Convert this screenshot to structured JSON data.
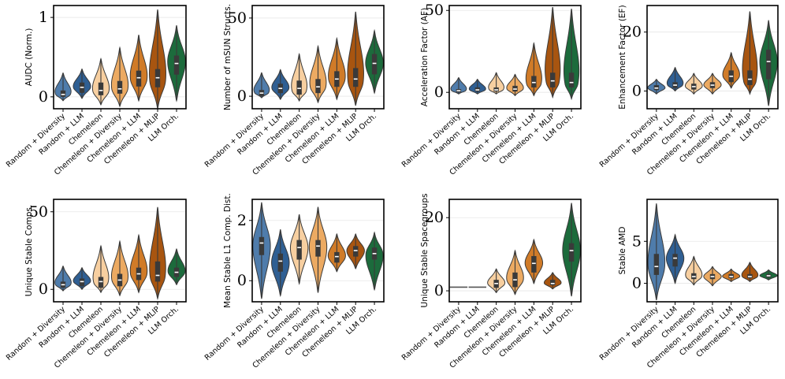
{
  "chart_data": [
    {
      "type": "violin",
      "ylabel": "AUDC (Norm.)",
      "ylim": [
        -0.15,
        1.15
      ],
      "yticks": [
        0,
        1
      ],
      "grid": true,
      "categories": [
        "Random + Diversity",
        "Random + LLM",
        "Chemeleon",
        "Chemeleon + Diversity",
        "Chemeleon + LLM",
        "Chemeleon + MLIP",
        "LLM Orch."
      ],
      "colors": [
        "#4f7cab",
        "#2f5f93",
        "#f7cfa0",
        "#ecaa62",
        "#d07b28",
        "#a85510",
        "#1c6b3c"
      ],
      "violins": [
        {
          "min": -0.05,
          "q1": 0.0,
          "median": 0.03,
          "q3": 0.08,
          "max": 0.3,
          "mode": 0.03
        },
        {
          "min": -0.02,
          "q1": 0.05,
          "median": 0.12,
          "q3": 0.18,
          "max": 0.35,
          "mode": 0.12
        },
        {
          "min": -0.1,
          "q1": 0.02,
          "median": 0.08,
          "q3": 0.18,
          "max": 0.48,
          "mode": 0.07
        },
        {
          "min": -0.12,
          "q1": 0.04,
          "median": 0.1,
          "q3": 0.2,
          "max": 0.62,
          "mode": 0.1
        },
        {
          "min": -0.05,
          "q1": 0.13,
          "median": 0.24,
          "q3": 0.33,
          "max": 0.78,
          "mode": 0.22
        },
        {
          "min": -0.15,
          "q1": 0.12,
          "median": 0.24,
          "q3": 0.35,
          "max": 1.1,
          "mode": 0.2
        },
        {
          "min": -0.05,
          "q1": 0.28,
          "median": 0.42,
          "q3": 0.52,
          "max": 0.9,
          "mode": 0.45
        }
      ]
    },
    {
      "type": "violin",
      "ylabel": "Number of mSUN Structs.",
      "ylim": [
        -8,
        58
      ],
      "yticks": [
        0,
        50
      ],
      "grid": true,
      "categories": [
        "Random + Diversity",
        "Random + LLM",
        "Chemeleon",
        "Chemeleon + Diversity",
        "Chemeleon + LLM",
        "Chemeleon + MLIP",
        "LLM Orch."
      ],
      "colors": [
        "#4f7cab",
        "#2f5f93",
        "#f7cfa0",
        "#ecaa62",
        "#d07b28",
        "#a85510",
        "#1c6b3c"
      ],
      "violins": [
        {
          "min": -1,
          "q1": 0,
          "median": 2,
          "q3": 4,
          "max": 15,
          "mode": 2
        },
        {
          "min": -2,
          "q1": 2,
          "median": 5,
          "q3": 8,
          "max": 17,
          "mode": 5
        },
        {
          "min": -3,
          "q1": 1,
          "median": 5,
          "q3": 10,
          "max": 27,
          "mode": 3
        },
        {
          "min": -4,
          "q1": 2,
          "median": 6,
          "q3": 11,
          "max": 32,
          "mode": 6
        },
        {
          "min": -2,
          "q1": 6,
          "median": 11,
          "q3": 16,
          "max": 37,
          "mode": 11
        },
        {
          "min": -6,
          "q1": 6,
          "median": 11,
          "q3": 18,
          "max": 54,
          "mode": 9
        },
        {
          "min": 2,
          "q1": 14,
          "median": 21,
          "q3": 27,
          "max": 42,
          "mode": 21
        }
      ]
    },
    {
      "type": "violin",
      "ylabel": "Acceleration Factor (AF)",
      "ylim": [
        -10,
        53
      ],
      "yticks": [
        0,
        50
      ],
      "grid": true,
      "categories": [
        "Random + Diversity",
        "Random + LLM",
        "Chemeleon",
        "Chemeleon + Diversity",
        "Chemeleon + LLM",
        "Chemeleon + MLIP",
        "LLM Orch."
      ],
      "colors": [
        "#4f7cab",
        "#2f5f93",
        "#f7cfa0",
        "#ecaa62",
        "#d07b28",
        "#a85510",
        "#1c6b3c"
      ],
      "violins": [
        {
          "min": -1,
          "q1": 0,
          "median": 1,
          "q3": 2,
          "max": 9,
          "mode": 1
        },
        {
          "min": -1,
          "q1": 0.5,
          "median": 1.5,
          "q3": 3,
          "max": 8,
          "mode": 1.5
        },
        {
          "min": -1,
          "q1": 0.5,
          "median": 1.5,
          "q3": 3,
          "max": 12,
          "mode": 1.5
        },
        {
          "min": -2,
          "q1": 0.5,
          "median": 2,
          "q3": 4,
          "max": 11,
          "mode": 2
        },
        {
          "min": -2,
          "q1": 3,
          "median": 6,
          "q3": 10,
          "max": 30,
          "mode": 5
        },
        {
          "min": -3,
          "q1": 3,
          "median": 7,
          "q3": 12,
          "max": 52,
          "mode": 6
        },
        {
          "min": -4,
          "q1": 3,
          "median": 6,
          "q3": 12,
          "max": 51,
          "mode": 5
        }
      ]
    },
    {
      "type": "violin",
      "ylabel": "Enhancement Factor (EF)",
      "ylim": [
        -6,
        29
      ],
      "yticks": [
        0,
        20
      ],
      "grid": true,
      "categories": [
        "Random + Diversity",
        "Random + LLM",
        "Chemeleon",
        "Chemeleon + Diversity",
        "Chemeleon + LLM",
        "Chemeleon + MLIP",
        "LLM Orch."
      ],
      "colors": [
        "#4f7cab",
        "#2f5f93",
        "#f7cfa0",
        "#ecaa62",
        "#d07b28",
        "#a85510",
        "#1c6b3c"
      ],
      "violins": [
        {
          "min": -1,
          "q1": 0.3,
          "median": 1,
          "q3": 2,
          "max": 4,
          "mode": 1
        },
        {
          "min": 0,
          "q1": 1,
          "median": 2,
          "q3": 3,
          "max": 8,
          "mode": 2
        },
        {
          "min": -1,
          "q1": 0.5,
          "median": 1.5,
          "q3": 2.5,
          "max": 6,
          "mode": 1.5
        },
        {
          "min": -1,
          "q1": 1,
          "median": 2,
          "q3": 3,
          "max": 6,
          "mode": 2
        },
        {
          "min": 1,
          "q1": 3,
          "median": 5,
          "q3": 7,
          "max": 13,
          "mode": 5
        },
        {
          "min": -1,
          "q1": 2,
          "median": 4,
          "q3": 7,
          "max": 27,
          "mode": 3
        },
        {
          "min": -5,
          "q1": 4,
          "median": 10,
          "q3": 14,
          "max": 24,
          "mode": 10
        }
      ]
    },
    {
      "type": "violin",
      "ylabel": "Unique Stable Comps.",
      "ylim": [
        -8,
        58
      ],
      "yticks": [
        0,
        50
      ],
      "grid": true,
      "categories": [
        "Random + Diversity",
        "Random + LLM",
        "Chemeleon",
        "Chemeleon + Diversity",
        "Chemeleon + LLM",
        "Chemeleon + MLIP",
        "LLM Orch."
      ],
      "colors": [
        "#4f7cab",
        "#2f5f93",
        "#f7cfa0",
        "#ecaa62",
        "#d07b28",
        "#a85510",
        "#1c6b3c"
      ],
      "violins": [
        {
          "min": -1,
          "q1": 1,
          "median": 3,
          "q3": 5,
          "max": 15,
          "mode": 3
        },
        {
          "min": 0,
          "q1": 2,
          "median": 5,
          "q3": 7,
          "max": 14,
          "mode": 5
        },
        {
          "min": -2,
          "q1": 1,
          "median": 5,
          "q3": 8,
          "max": 28,
          "mode": 4
        },
        {
          "min": -4,
          "q1": 2,
          "median": 6,
          "q3": 10,
          "max": 31,
          "mode": 6
        },
        {
          "min": -2,
          "q1": 6,
          "median": 10,
          "q3": 14,
          "max": 35,
          "mode": 10
        },
        {
          "min": -6,
          "q1": 5,
          "median": 9,
          "q3": 18,
          "max": 53,
          "mode": 8
        },
        {
          "min": 3,
          "q1": 8,
          "median": 11,
          "q3": 14,
          "max": 26,
          "mode": 11
        }
      ]
    },
    {
      "type": "violin",
      "ylabel": "Mean Stable L1 Comp. Dist.",
      "ylim": [
        -0.7,
        2.7
      ],
      "yticks": [
        0,
        2
      ],
      "grid": true,
      "categories": [
        "Random + Diversity",
        "Random + LLM",
        "Chemeleon",
        "Chemeleon + Diversity",
        "Chemeleon + LLM",
        "Chemeleon + MLIP",
        "LLM Orch."
      ],
      "colors": [
        "#4f7cab",
        "#2f5f93",
        "#f7cfa0",
        "#ecaa62",
        "#d07b28",
        "#a85510",
        "#1c6b3c"
      ],
      "violins": [
        {
          "min": -0.6,
          "q1": 0.85,
          "median": 1.25,
          "q3": 1.45,
          "max": 2.6,
          "mode": 1.2
        },
        {
          "min": -0.5,
          "q1": 0.3,
          "median": 0.65,
          "q3": 0.9,
          "max": 1.7,
          "mode": 0.6
        },
        {
          "min": -0.1,
          "q1": 0.7,
          "median": 1.1,
          "q3": 1.35,
          "max": 2.2,
          "mode": 1.1
        },
        {
          "min": -0.4,
          "q1": 0.8,
          "median": 1.15,
          "q3": 1.35,
          "max": 2.45,
          "mode": 1.15
        },
        {
          "min": 0.3,
          "q1": 0.6,
          "median": 0.8,
          "q3": 0.95,
          "max": 1.55,
          "mode": 0.8
        },
        {
          "min": 0.4,
          "q1": 0.8,
          "median": 1.0,
          "q3": 1.15,
          "max": 1.55,
          "mode": 1.0
        },
        {
          "min": -0.3,
          "q1": 0.7,
          "median": 0.9,
          "q3": 1.1,
          "max": 1.6,
          "mode": 0.9
        }
      ]
    },
    {
      "type": "violin",
      "ylabel": "Unique Stable Spacegroups",
      "ylim": [
        -3,
        25
      ],
      "yticks": [
        0,
        20
      ],
      "grid": true,
      "categories": [
        "Random + Diversity",
        "Random + LLM",
        "Chemeleon",
        "Chemeleon + Diversity",
        "Chemeleon + LLM",
        "Chemeleon + MLIP",
        "LLM Orch."
      ],
      "colors": [
        "#4f7cab",
        "#2f5f93",
        "#f7cfa0",
        "#ecaa62",
        "#d07b28",
        "#a85510",
        "#1c6b3c"
      ],
      "violins": [
        {
          "min": 1,
          "q1": 1,
          "median": 1,
          "q3": 1,
          "max": 1,
          "mode": 1
        },
        {
          "min": 1,
          "q1": 1,
          "median": 1,
          "q3": 1,
          "max": 1,
          "mode": 1
        },
        {
          "min": -0.5,
          "q1": 0.8,
          "median": 2,
          "q3": 3,
          "max": 6,
          "mode": 2
        },
        {
          "min": -1,
          "q1": 1,
          "median": 3,
          "q3": 5,
          "max": 11,
          "mode": 3
        },
        {
          "min": 2,
          "q1": 5,
          "median": 7.5,
          "q3": 9.5,
          "max": 14,
          "mode": 7.5
        },
        {
          "min": 0.5,
          "q1": 1.5,
          "median": 2,
          "q3": 3,
          "max": 5,
          "mode": 2
        },
        {
          "min": -1.5,
          "q1": 8,
          "median": 11,
          "q3": 13,
          "max": 24,
          "mode": 11
        }
      ]
    },
    {
      "type": "violin",
      "ylabel": "Stable AMD",
      "ylim": [
        -2.2,
        10
      ],
      "yticks": [
        0,
        5
      ],
      "grid": true,
      "categories": [
        "Random + Diversity",
        "Random + LLM",
        "Chemeleon",
        "Chemeleon + Diversity",
        "Chemeleon + LLM",
        "Chemeleon + MLIP",
        "LLM Orch."
      ],
      "colors": [
        "#4f7cab",
        "#2f5f93",
        "#f7cfa0",
        "#ecaa62",
        "#d07b28",
        "#a85510",
        "#1c6b3c"
      ],
      "violins": [
        {
          "min": -2,
          "q1": 1,
          "median": 2,
          "q3": 3.5,
          "max": 9.5,
          "mode": 2
        },
        {
          "min": 0,
          "q1": 2,
          "median": 3,
          "q3": 3.5,
          "max": 5.8,
          "mode": 3
        },
        {
          "min": -0.2,
          "q1": 0.5,
          "median": 0.8,
          "q3": 1.2,
          "max": 3.2,
          "mode": 0.8
        },
        {
          "min": -0.3,
          "q1": 0.5,
          "median": 0.8,
          "q3": 1.1,
          "max": 2,
          "mode": 0.8
        },
        {
          "min": 0.2,
          "q1": 0.6,
          "median": 0.8,
          "q3": 1.1,
          "max": 1.7,
          "mode": 0.8
        },
        {
          "min": 0.2,
          "q1": 0.6,
          "median": 0.8,
          "q3": 1.1,
          "max": 2.5,
          "mode": 0.8
        },
        {
          "min": 0.4,
          "q1": 0.7,
          "median": 0.9,
          "q3": 1.1,
          "max": 1.6,
          "mode": 0.9
        }
      ]
    }
  ]
}
